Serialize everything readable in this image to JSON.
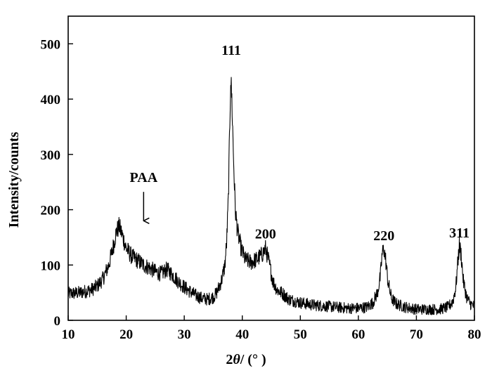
{
  "chart_data": {
    "type": "line",
    "title": "",
    "xlabel_prefix": "2",
    "xlabel_theta": "θ",
    "xlabel_suffix": "/ (°  )",
    "ylabel": "Intensity/counts",
    "xlim": [
      10,
      80
    ],
    "ylim": [
      0,
      550
    ],
    "xticks": [
      10,
      20,
      30,
      40,
      50,
      60,
      70,
      80
    ],
    "yticks": [
      0,
      100,
      200,
      300,
      400,
      500
    ],
    "grid": false,
    "legend": "none",
    "line_color": "#000000",
    "series": [
      {
        "x": [
          10,
          12,
          14,
          15,
          16,
          17,
          17.8,
          18.3,
          18.8,
          19.3,
          20,
          21,
          22,
          23,
          24,
          25,
          26,
          27,
          28,
          29,
          30,
          31,
          32,
          33,
          34,
          35,
          35.5,
          36,
          36.5,
          37,
          37.3,
          37.6,
          37.8,
          38.0,
          38.2,
          38.5,
          38.8,
          39.2,
          39.8,
          40.5,
          41.5,
          42.5,
          43.5,
          44.0,
          44.5,
          45.3,
          46,
          47,
          48,
          50,
          52,
          55,
          58,
          60,
          61.5,
          62.5,
          63.3,
          63.8,
          64.1,
          64.4,
          64.7,
          65.1,
          65.7,
          66.5,
          68,
          70,
          72,
          74,
          75.5,
          76.3,
          76.8,
          77.1,
          77.4,
          77.7,
          78.1,
          78.7,
          79.3,
          80
        ],
        "y": [
          48,
          50,
          55,
          62,
          75,
          100,
          135,
          160,
          170,
          155,
          130,
          115,
          108,
          100,
          95,
          88,
          84,
          92,
          82,
          70,
          60,
          52,
          45,
          40,
          38,
          42,
          48,
          60,
          75,
          100,
          140,
          220,
          330,
          440,
          400,
          290,
          200,
          160,
          130,
          110,
          105,
          110,
          120,
          130,
          110,
          70,
          55,
          48,
          38,
          32,
          28,
          25,
          22,
          22,
          24,
          32,
          50,
          80,
          120,
          130,
          110,
          70,
          40,
          30,
          24,
          20,
          20,
          20,
          24,
          35,
          60,
          100,
          135,
          120,
          70,
          40,
          30,
          25
        ]
      }
    ],
    "annotations": [
      {
        "text": "PAA",
        "x": 23,
        "y": 250,
        "arrow_to_y": 180
      },
      {
        "text": "111",
        "x": 38.1,
        "y": 480
      },
      {
        "text": "200",
        "x": 44,
        "y": 148
      },
      {
        "text": "220",
        "x": 64.4,
        "y": 145
      },
      {
        "text": "311",
        "x": 77.4,
        "y": 150
      }
    ]
  }
}
